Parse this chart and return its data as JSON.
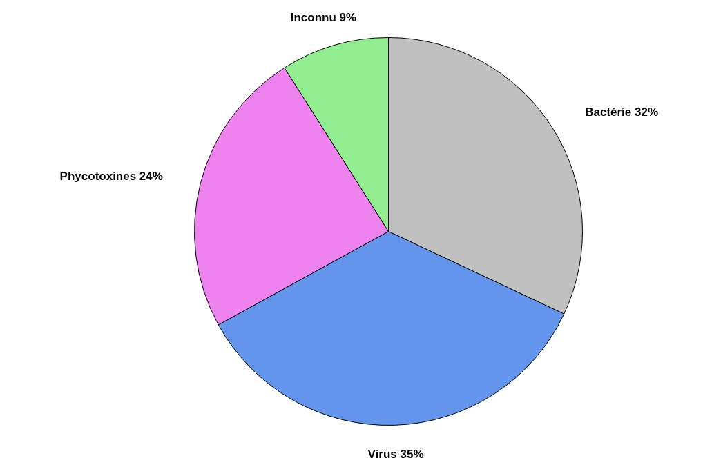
{
  "chart_data": {
    "type": "pie",
    "categories": [
      "Bactérie",
      "Virus",
      "Phycotoxines",
      "Inconnu"
    ],
    "values": [
      32,
      35,
      24,
      9
    ],
    "value_labels": [
      "32%",
      "35%",
      "24%",
      "9%"
    ],
    "colors": [
      "#c0c0c0",
      "#6495ed",
      "#ee82ee",
      "#90ee90"
    ]
  }
}
